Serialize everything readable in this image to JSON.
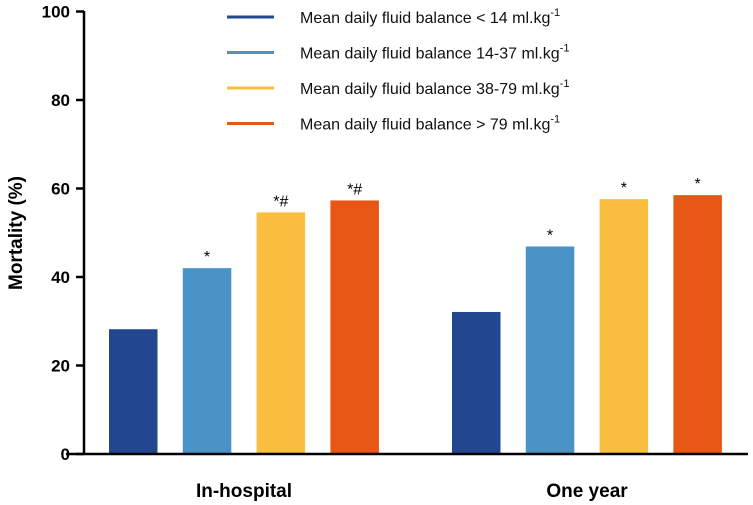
{
  "chart_data": {
    "type": "bar",
    "title": "",
    "xlabel": "",
    "ylabel": "Mortality (%)",
    "ylim": [
      0,
      100
    ],
    "yticks": [
      "0",
      "20",
      "40",
      "60",
      "80",
      "100"
    ],
    "grid": false,
    "legend_placement": "top-center",
    "categories": [
      "In-hospital",
      "One year"
    ],
    "series": [
      {
        "name": "Mean daily fluid balance < 14 ml.kg",
        "sup": "-1",
        "color": "#22478f",
        "values": [
          28.2,
          32.1
        ],
        "annotations": [
          "",
          ""
        ]
      },
      {
        "name": "Mean daily fluid balance 14-37 ml.kg",
        "sup": "-1",
        "color": "#4a93c6",
        "values": [
          42.0,
          46.9
        ],
        "annotations": [
          "*",
          "*"
        ]
      },
      {
        "name": "Mean daily fluid balance 38-79 ml.kg",
        "sup": "-1",
        "color": "#f9be3d",
        "values": [
          54.6,
          57.6
        ],
        "annotations": [
          "*#",
          "*"
        ]
      },
      {
        "name": "Mean daily fluid balance > 79 ml.kg",
        "sup": "-1",
        "color": "#e85615",
        "values": [
          57.3,
          58.5
        ],
        "annotations": [
          "*#",
          "*"
        ]
      }
    ]
  }
}
